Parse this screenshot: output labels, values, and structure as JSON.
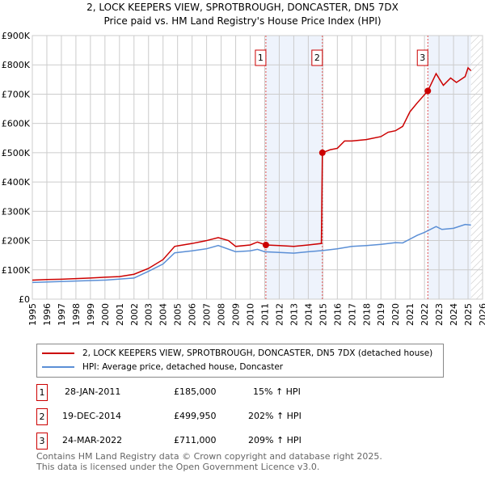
{
  "title": "2, LOCK KEEPERS VIEW, SPROTBROUGH, DONCASTER, DN5 7DX",
  "subtitle": "Price paid vs. HM Land Registry's House Price Index (HPI)",
  "chart_data": {
    "type": "line",
    "xlim": [
      1995,
      2026
    ],
    "ylim": [
      0,
      900000
    ],
    "yticks": [
      "£0",
      "£100K",
      "£200K",
      "£300K",
      "£400K",
      "£500K",
      "£600K",
      "£700K",
      "£800K",
      "£900K"
    ],
    "xticks": [
      "1995",
      "1996",
      "1997",
      "1998",
      "1999",
      "2000",
      "2001",
      "2002",
      "2003",
      "2004",
      "2005",
      "2006",
      "2007",
      "2008",
      "2009",
      "2010",
      "2011",
      "2012",
      "2013",
      "2014",
      "2015",
      "2016",
      "2017",
      "2018",
      "2019",
      "2020",
      "2021",
      "2022",
      "2023",
      "2024",
      "2025",
      "2026"
    ],
    "series": [
      {
        "name": "2, LOCK KEEPERS VIEW, SPROTBROUGH, DONCASTER, DN5 7DX (detached house)",
        "color": "#cc0000",
        "x": [
          1995,
          1996,
          1997,
          1998,
          1999,
          2000,
          2001,
          2002,
          2003,
          2004,
          2004.8,
          2005,
          2006,
          2007,
          2007.8,
          2008.5,
          2009,
          2010,
          2010.5,
          2011.08,
          2012,
          2013,
          2014,
          2014.9,
          2014.97,
          2015.5,
          2016,
          2016.5,
          2017,
          2018,
          2019,
          2019.5,
          2020,
          2020.5,
          2021,
          2021.5,
          2022.23,
          2022.8,
          2023.3,
          2023.8,
          2024.2,
          2024.8,
          2025,
          2025.2
        ],
        "y": [
          65000,
          67000,
          68000,
          70000,
          72000,
          75000,
          77000,
          85000,
          105000,
          135000,
          180000,
          182000,
          190000,
          200000,
          210000,
          200000,
          180000,
          185000,
          195000,
          185000,
          183000,
          180000,
          185000,
          190000,
          499950,
          510000,
          515000,
          540000,
          540000,
          545000,
          555000,
          570000,
          575000,
          590000,
          640000,
          670000,
          711000,
          770000,
          730000,
          755000,
          740000,
          760000,
          790000,
          780000
        ]
      },
      {
        "name": "HPI: Average price, detached house, Doncaster",
        "color": "#5b8fd6",
        "x": [
          1995,
          2000,
          2002,
          2003,
          2004,
          2004.8,
          2006,
          2007,
          2007.8,
          2009,
          2010,
          2010.5,
          2011,
          2013,
          2014,
          2015,
          2016,
          2017,
          2018,
          2019,
          2020,
          2020.5,
          2021,
          2021.5,
          2022,
          2022.8,
          2023.2,
          2024,
          2024.8,
          2025.2
        ],
        "y": [
          57000,
          65000,
          72000,
          95000,
          120000,
          158000,
          165000,
          172000,
          183000,
          162000,
          165000,
          170000,
          162000,
          157000,
          162000,
          166000,
          172000,
          180000,
          183000,
          187000,
          193000,
          192000,
          205000,
          218000,
          228000,
          248000,
          238000,
          242000,
          255000,
          253000
        ]
      }
    ],
    "sales": [
      {
        "label": "1",
        "x": 2011.08,
        "y": 185000
      },
      {
        "label": "2",
        "x": 2014.97,
        "y": 499950
      },
      {
        "label": "3",
        "x": 2022.23,
        "y": 711000
      }
    ],
    "shaded": [
      [
        2011.08,
        2014.97
      ],
      [
        2022.23,
        2025.2
      ]
    ],
    "hatch_from": 2025.2,
    "grid": true,
    "legend_placement": "below"
  },
  "legend": {
    "red": "2, LOCK KEEPERS VIEW, SPROTBROUGH, DONCASTER, DN5 7DX (detached house)",
    "blue": "HPI: Average price, detached house, Doncaster"
  },
  "table": [
    {
      "num": "1",
      "date": "28-JAN-2011",
      "price": "£185,000",
      "hpi": "15% ↑ HPI"
    },
    {
      "num": "2",
      "date": "19-DEC-2014",
      "price": "£499,950",
      "hpi": "202% ↑ HPI"
    },
    {
      "num": "3",
      "date": "24-MAR-2022",
      "price": "£711,000",
      "hpi": "209% ↑ HPI"
    }
  ],
  "footer": [
    "Contains HM Land Registry data © Crown copyright and database right 2025.",
    "This data is licensed under the Open Government Licence v3.0."
  ]
}
